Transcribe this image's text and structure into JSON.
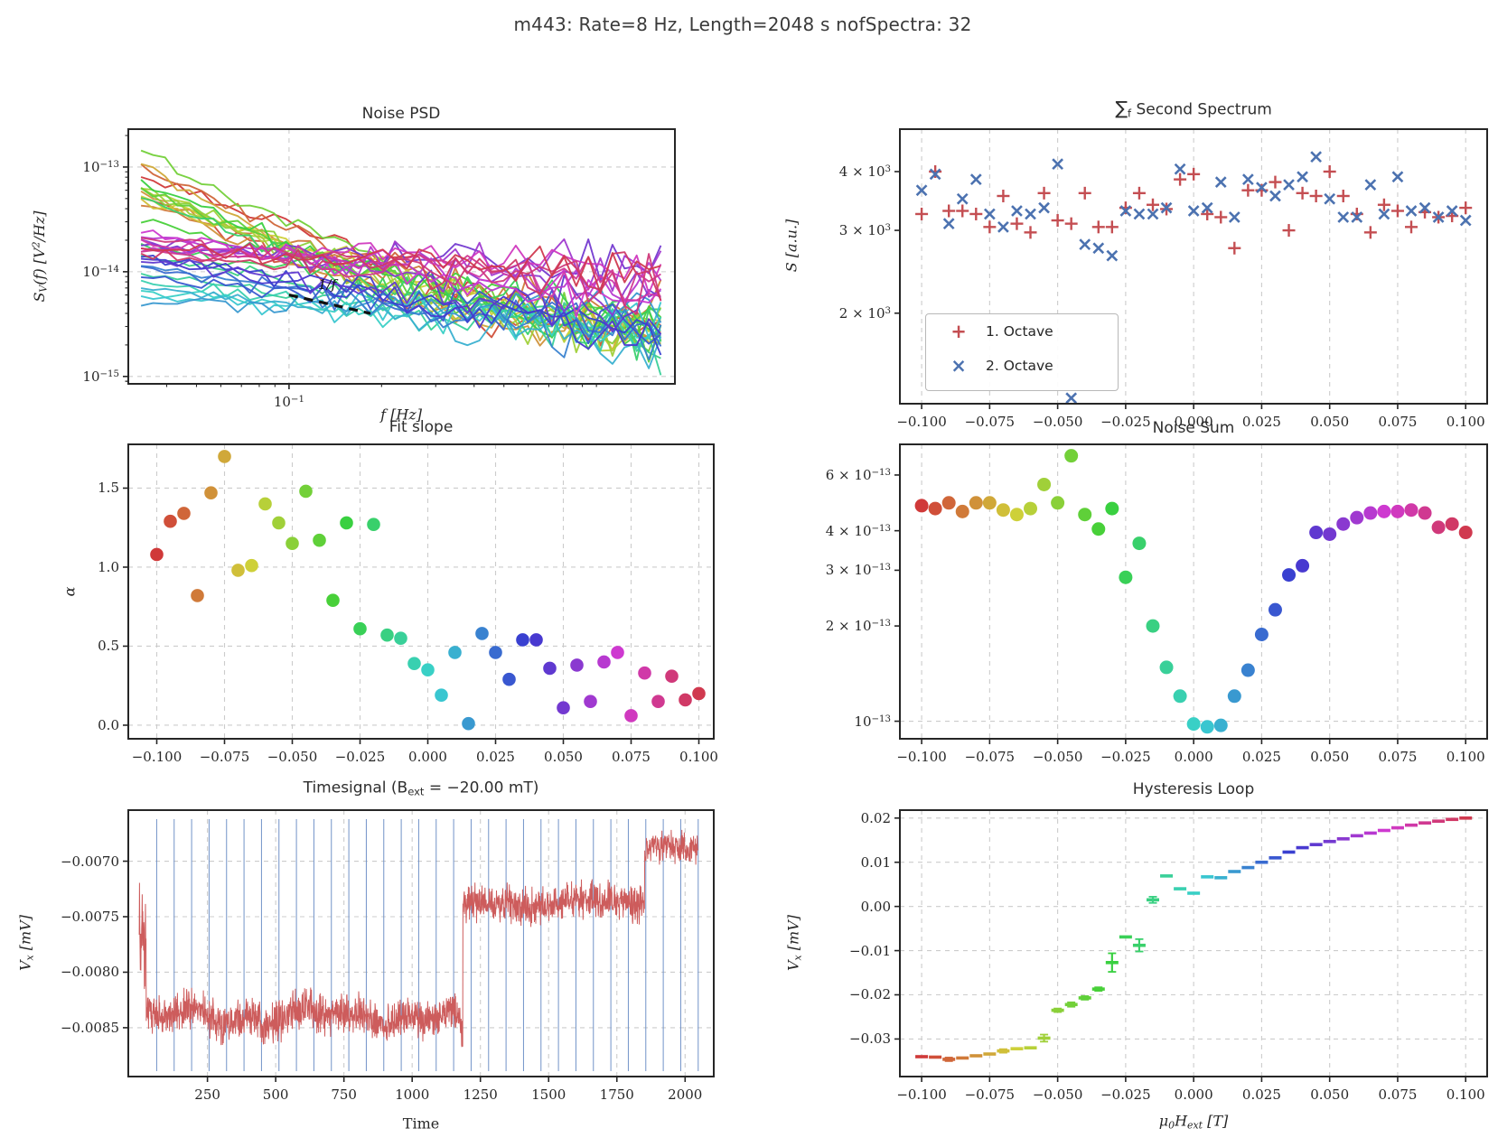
{
  "figure": {
    "title": "m443:  Rate=8 Hz,  Length=2048 s  nofSpectra:  32",
    "colors": {
      "octave1": "#c44e52",
      "octave2": "#4c72b0",
      "timesignal_line": "#cd5c5c",
      "vline": "#7293c8",
      "grid": "#cccccc",
      "spine": "#262626",
      "psd_guide": "#111111"
    }
  },
  "shared": {
    "field_tick_values": [
      -0.1,
      -0.075,
      -0.05,
      -0.025,
      0.0,
      0.025,
      0.05,
      0.075,
      0.1
    ],
    "field_tick_labels": [
      "−0.100",
      "−0.075",
      "−0.050",
      "−0.025",
      "0.000",
      "0.025",
      "0.050",
      "0.075",
      "0.100"
    ],
    "field_x": [
      -0.1,
      -0.095,
      -0.09,
      -0.085,
      -0.08,
      -0.075,
      -0.07,
      -0.065,
      -0.06,
      -0.055,
      -0.05,
      -0.045,
      -0.04,
      -0.035,
      -0.03,
      -0.025,
      -0.02,
      -0.015,
      -0.01,
      -0.005,
      0.0,
      0.005,
      0.01,
      0.015,
      0.02,
      0.025,
      0.03,
      0.035,
      0.04,
      0.045,
      0.05,
      0.055,
      0.06,
      0.065,
      0.07,
      0.075,
      0.08,
      0.085,
      0.09,
      0.095,
      0.1
    ]
  },
  "chart_data": [
    {
      "id": "noise_psd",
      "type": "line",
      "title": "Noise PSD",
      "xlabel": "f [Hz]",
      "ylabel": "S_{V}(f) [V^{2}/Hz]",
      "xscale": "log",
      "yscale": "log",
      "xlim": [
        0.03,
        1.8
      ],
      "ylim": [
        8.5e-16,
        2.3e-13
      ],
      "xticks": [
        {
          "v": 0.1,
          "label": "10^{−1}"
        }
      ],
      "yticks": [
        {
          "v": 1e-13,
          "label": "10^{−13}"
        },
        {
          "v": 1e-14,
          "label": "10^{−14}"
        },
        {
          "v": 1e-15,
          "label": "10^{−15}"
        }
      ],
      "n_lines": 41,
      "f_start": 0.033,
      "f_end": 1.62,
      "points_per_line": 44,
      "amplitudes": [
        8e-14,
        5e-14,
        1e-13,
        4.2e-14,
        5.5e-14,
        1.05e-13,
        4.5e-14,
        5e-14,
        6.5e-14,
        6e-14,
        5.5e-14,
        1.4e-13,
        6e-14,
        3e-14,
        7e-14,
        1.6e-14,
        5e-14,
        1.3e-14,
        8.5e-15,
        6.5e-15,
        5.5e-15,
        4.5e-15,
        6e-15,
        3.8e-15,
        1.05e-14,
        9.5e-15,
        7.5e-15,
        1.3e-14,
        1.25e-14,
        1.15e-14,
        1.6e-14,
        1.9e-14,
        1.55e-14,
        2.1e-14,
        2.2e-14,
        1.5e-14,
        1.8e-14,
        1.45e-14,
        1.9e-14,
        1.35e-14,
        1.6e-14
      ],
      "alphas": [
        1.08,
        1.29,
        1.34,
        0.82,
        1.47,
        1.7,
        0.98,
        1.01,
        1.4,
        1.28,
        1.15,
        1.48,
        1.17,
        0.79,
        1.28,
        0.61,
        1.27,
        0.57,
        0.55,
        0.39,
        0.35,
        0.19,
        0.46,
        0.01,
        0.58,
        0.46,
        0.29,
        0.54,
        0.54,
        0.36,
        0.11,
        0.38,
        0.15,
        0.4,
        0.46,
        0.06,
        0.33,
        0.15,
        0.31,
        0.16,
        0.2
      ],
      "floor_warm": 2.2e-15,
      "floor_cool": 1.2e-15,
      "jitter": [
        0.04,
        0.33
      ],
      "annotation": {
        "label": "1/f",
        "x1": 0.1,
        "y1": 6e-15,
        "x2": 0.184,
        "y2": 4e-15
      }
    },
    {
      "id": "second_spectrum",
      "type": "scatter",
      "title": "∑_{f} Second Spectrum",
      "ylabel": "S [a.u.]",
      "yscale": "log",
      "ylim": [
        1284,
        4924
      ],
      "yticks": [
        {
          "v": 4000,
          "label": "4 × 10^{3}"
        },
        {
          "v": 3000,
          "label": "3 × 10^{3}"
        },
        {
          "v": 2000,
          "label": "2 × 10^{3}"
        }
      ],
      "series": [
        {
          "name": "1. Octave",
          "marker": "plus",
          "values": [
            3250,
            4000,
            3300,
            3300,
            3250,
            3050,
            3550,
            3100,
            2970,
            3600,
            3150,
            3100,
            3600,
            3050,
            3050,
            3350,
            3600,
            3400,
            3330,
            3850,
            3950,
            3250,
            3200,
            2750,
            3650,
            3650,
            3800,
            3000,
            3600,
            3550,
            4000,
            3550,
            3250,
            2970,
            3400,
            3300,
            3050,
            3280,
            3200,
            3220,
            3350
          ]
        },
        {
          "name": "2. Octave",
          "marker": "x",
          "values": [
            3650,
            3950,
            3100,
            3500,
            3850,
            3250,
            3050,
            3300,
            3250,
            3350,
            4150,
            1320,
            2800,
            2750,
            2650,
            3300,
            3250,
            3250,
            3350,
            4050,
            3300,
            3350,
            3800,
            3200,
            3850,
            3700,
            3550,
            3750,
            3900,
            4300,
            3500,
            3200,
            3200,
            3750,
            3250,
            3900,
            3300,
            3350,
            3200,
            3300,
            3150
          ]
        }
      ],
      "legend": {
        "items": [
          {
            "marker": "plus",
            "label": "1. Octave"
          },
          {
            "marker": "x",
            "label": "2. Octave"
          }
        ]
      }
    },
    {
      "id": "fit_slope",
      "type": "scatter",
      "title": "Fit slope",
      "ylabel": "α",
      "ylim": [
        -0.086,
        1.777
      ],
      "yticks": [
        {
          "v": 1.5,
          "label": "1.5"
        },
        {
          "v": 1.0,
          "label": "1.0"
        },
        {
          "v": 0.5,
          "label": "0.5"
        },
        {
          "v": 0.0,
          "label": "0.0"
        }
      ],
      "values": [
        1.08,
        1.29,
        1.34,
        0.82,
        1.47,
        1.7,
        0.98,
        1.01,
        1.4,
        1.28,
        1.15,
        1.48,
        1.17,
        0.79,
        1.28,
        0.61,
        1.27,
        0.57,
        0.55,
        0.39,
        0.35,
        0.19,
        0.46,
        0.01,
        0.58,
        0.46,
        0.29,
        0.54,
        0.54,
        0.36,
        0.11,
        0.38,
        0.15,
        0.4,
        0.46,
        0.06,
        0.33,
        0.15,
        0.31,
        0.16,
        0.2
      ]
    },
    {
      "id": "noise_sum",
      "type": "scatter",
      "title": "Noise Sum",
      "yscale": "log",
      "ylim": [
        8.8e-14,
        7.5e-13
      ],
      "yticks": [
        {
          "v": 6e-13,
          "label": "6 × 10^{−13}"
        },
        {
          "v": 4e-13,
          "label": "4 × 10^{−13}"
        },
        {
          "v": 3e-13,
          "label": "3 × 10^{−13}"
        },
        {
          "v": 2e-13,
          "label": "2 × 10^{−13}"
        },
        {
          "v": 1e-13,
          "label": "10^{−13}"
        }
      ],
      "values": [
        4.8e-13,
        4.7e-13,
        4.9e-13,
        4.6e-13,
        4.9e-13,
        4.9e-13,
        4.65e-13,
        4.5e-13,
        4.7e-13,
        5.6e-13,
        4.9e-13,
        6.9e-13,
        4.5e-13,
        4.05e-13,
        4.7e-13,
        2.85e-13,
        3.65e-13,
        2e-13,
        1.48e-13,
        1.2e-13,
        9.8e-14,
        9.6e-14,
        9.7e-14,
        1.2e-13,
        1.45e-13,
        1.88e-13,
        2.25e-13,
        2.9e-13,
        3.1e-13,
        3.95e-13,
        3.9e-13,
        4.2e-13,
        4.4e-13,
        4.55e-13,
        4.6e-13,
        4.6e-13,
        4.65e-13,
        4.55e-13,
        4.1e-13,
        4.2e-13,
        3.95e-13
      ]
    },
    {
      "id": "timesignal",
      "type": "line",
      "title": "Timesignal (B_{ext} = −20.00 mT)",
      "xlabel": "Time",
      "ylabel": "V_{x} [mV]",
      "xlim": [
        -40,
        2105
      ],
      "ylim": [
        -0.00894,
        -0.00654
      ],
      "xticks": [
        {
          "v": 250,
          "label": "250"
        },
        {
          "v": 500,
          "label": "500"
        },
        {
          "v": 750,
          "label": "750"
        },
        {
          "v": 1000,
          "label": "1000"
        },
        {
          "v": 1250,
          "label": "1250"
        },
        {
          "v": 1500,
          "label": "1500"
        },
        {
          "v": 1750,
          "label": "1750"
        },
        {
          "v": 2000,
          "label": "2000"
        }
      ],
      "yticks": [
        {
          "v": -0.007,
          "label": "−0.0070"
        },
        {
          "v": -0.0075,
          "label": "−0.0075"
        },
        {
          "v": -0.008,
          "label": "−0.0080"
        },
        {
          "v": -0.0085,
          "label": "−0.0085"
        }
      ],
      "n_samples": 2048,
      "segments": [
        {
          "t0": 0,
          "t1": 26,
          "level": -0.00768,
          "drift": 0.0,
          "noise_sd": 0.00025
        },
        {
          "t0": 26,
          "t1": 1186,
          "level": -0.0084,
          "drift": 0.0,
          "noise_sd": 8.5e-05
        },
        {
          "t0": 1186,
          "t1": 1852,
          "level": -0.0074,
          "drift": 4.5e-05,
          "noise_sd": 8e-05
        },
        {
          "t0": 1852,
          "t1": 2048,
          "level": -0.00687,
          "drift": 0.0,
          "noise_sd": 7e-05
        }
      ],
      "vline_spacing": 64,
      "vline_count": 32
    },
    {
      "id": "hysteresis",
      "type": "scatter",
      "title": "Hysteresis Loop",
      "xlabel": "μ_{0}H_{ext} [T]",
      "ylabel": "V_{x} [mV]",
      "ylim": [
        -0.0385,
        0.0218
      ],
      "yticks": [
        {
          "v": 0.02,
          "label": "0.02"
        },
        {
          "v": 0.01,
          "label": "0.01"
        },
        {
          "v": 0.0,
          "label": "0.00"
        },
        {
          "v": -0.01,
          "label": "−0.01"
        },
        {
          "v": -0.02,
          "label": "−0.02"
        },
        {
          "v": -0.03,
          "label": "−0.03"
        }
      ],
      "values": [
        -0.034,
        -0.0341,
        -0.0346,
        -0.0343,
        -0.0338,
        -0.0334,
        -0.0327,
        -0.0322,
        -0.032,
        -0.0298,
        -0.0235,
        -0.0222,
        -0.0207,
        -0.0187,
        -0.0127,
        -0.0069,
        -0.0088,
        0.0015,
        0.0069,
        0.004,
        0.003,
        0.0067,
        0.0065,
        0.0079,
        0.0088,
        0.01,
        0.011,
        0.0123,
        0.0133,
        0.014,
        0.0147,
        0.0153,
        0.016,
        0.0166,
        0.0172,
        0.0178,
        0.0184,
        0.0189,
        0.0193,
        0.0197,
        0.02
      ],
      "yerr": [
        0.0003,
        0.0002,
        0.0004,
        0.0002,
        0.0002,
        0.0002,
        0.0004,
        0.0002,
        0.0002,
        0.0008,
        0.0004,
        0.0005,
        0.0004,
        0.0004,
        0.0021,
        0.0003,
        0.0014,
        0.0007,
        0.0003,
        0.0002,
        0.0002,
        0.0003,
        0.0003,
        0.0002,
        0.0002,
        0.0002,
        0.0002,
        0.0002,
        0.0002,
        0.0002,
        0.0002,
        0.0002,
        0.0002,
        0.0002,
        0.0002,
        0.0002,
        0.0002,
        0.0002,
        0.0002,
        0.0002,
        0.0002
      ]
    }
  ]
}
